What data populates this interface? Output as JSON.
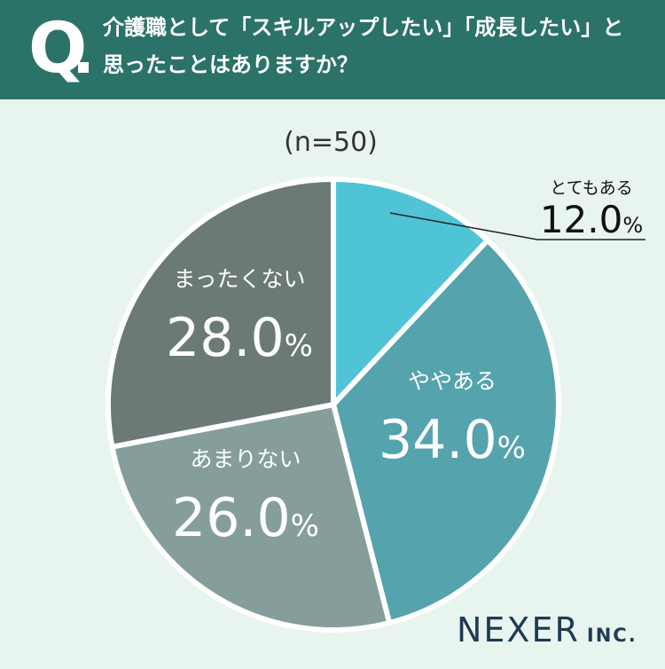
{
  "header": {
    "q_mark": "Q",
    "question_line1": "介護職として「スキルアップしたい」「成長したい」と",
    "question_line2": "思ったことはありますか？"
  },
  "chart_data": {
    "type": "pie",
    "sample_size_label": "(n=50)",
    "slices": [
      {
        "label": "とてもある",
        "value": 12.0,
        "display": "12.0",
        "color": "#4fc4d6"
      },
      {
        "label": "ややある",
        "value": 34.0,
        "display": "34.0",
        "color": "#54a3ad"
      },
      {
        "label": "あまりない",
        "value": 26.0,
        "display": "26.0",
        "color": "#869e9b"
      },
      {
        "label": "まったくない",
        "value": 28.0,
        "display": "28.0",
        "color": "#6b7a77"
      }
    ],
    "unit": "%"
  },
  "logo": {
    "main": "NEXER",
    "sub": "INC."
  }
}
